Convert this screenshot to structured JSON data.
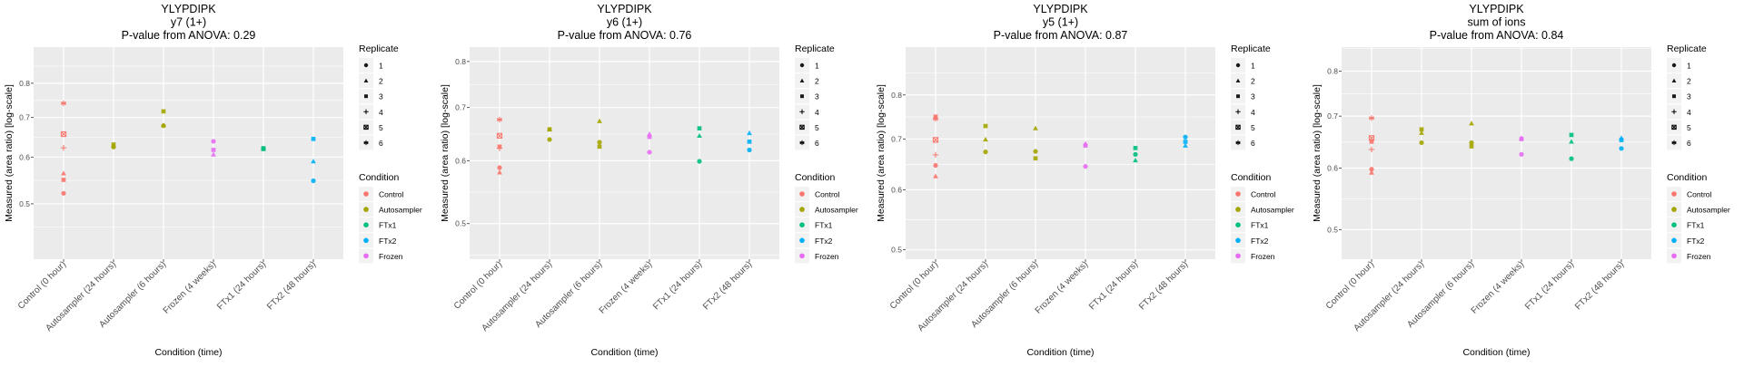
{
  "legend": {
    "replicate_title": "Replicate",
    "replicates": [
      "1",
      "2",
      "3",
      "4",
      "5",
      "6"
    ],
    "condition_title": "Condition",
    "conditions": [
      {
        "name": "Control",
        "color": "#F8766D"
      },
      {
        "name": "Autosampler",
        "color": "#A3A500"
      },
      {
        "name": "FTx1",
        "color": "#00BF7D"
      },
      {
        "name": "FTx2",
        "color": "#00B0F6"
      },
      {
        "name": "Frozen",
        "color": "#E76BF3"
      }
    ]
  },
  "chart_data": [
    {
      "type": "scatter",
      "title": [
        "YLYPDIPK",
        "y7 (1+)",
        "P-value from ANOVA: 0.29"
      ],
      "xlabel": "Condition (time)",
      "ylabel": "Measured (area ratio) [log-scale]",
      "yscale": "log",
      "ylim": [
        0.403,
        0.921
      ],
      "yticks": [
        0.5,
        0.6,
        0.7,
        0.8
      ],
      "grid": true,
      "legend": "right",
      "categories": [
        "Control (0 hour)",
        "Autosampler (24 hours)",
        "Autosampler (6 hours)",
        "Frozen (4 weeks)",
        "FTx1 (24 hours)",
        "FTx2 (48 hours)"
      ],
      "category_condition": [
        "Control",
        "Autosampler",
        "Autosampler",
        "Frozen",
        "FTx1",
        "FTx2"
      ],
      "points": [
        [
          0,
          6,
          0.74
        ],
        [
          0,
          5,
          0.656
        ],
        [
          0,
          4,
          0.622
        ],
        [
          0,
          2,
          0.563
        ],
        [
          0,
          3,
          0.549
        ],
        [
          0,
          1,
          0.521
        ],
        [
          1,
          3,
          0.63
        ],
        [
          1,
          1,
          0.624
        ],
        [
          1,
          2,
          0.626
        ],
        [
          2,
          3,
          0.717
        ],
        [
          2,
          1,
          0.678
        ],
        [
          2,
          2,
          0.679
        ],
        [
          3,
          1,
          0.638
        ],
        [
          3,
          3,
          0.617
        ],
        [
          3,
          2,
          0.606
        ],
        [
          4,
          1,
          0.62
        ],
        [
          4,
          3,
          0.621
        ],
        [
          4,
          2,
          0.619
        ],
        [
          5,
          3,
          0.644
        ],
        [
          5,
          2,
          0.59
        ],
        [
          5,
          1,
          0.547
        ]
      ]
    },
    {
      "type": "scatter",
      "title": [
        "YLYPDIPK",
        "y6 (1+)",
        "P-value from ANOVA: 0.76"
      ],
      "xlabel": "Condition (time)",
      "ylabel": "Measured (area ratio) [log-scale]",
      "yscale": "log",
      "ylim": [
        0.451,
        0.834
      ],
      "yticks": [
        0.5,
        0.6,
        0.7,
        0.8
      ],
      "grid": true,
      "legend": "right",
      "categories": [
        "Control (0 hour)",
        "Autosampler (24 hours)",
        "Autosampler (6 hours)",
        "Frozen (4 weeks)",
        "FTx1 (24 hours)",
        "FTx2 (48 hours)"
      ],
      "category_condition": [
        "Control",
        "Autosampler",
        "Autosampler",
        "Frozen",
        "FTx1",
        "FTx2"
      ],
      "points": [
        [
          0,
          6,
          0.676
        ],
        [
          0,
          5,
          0.645
        ],
        [
          0,
          3,
          0.625
        ],
        [
          0,
          4,
          0.622
        ],
        [
          0,
          1,
          0.588
        ],
        [
          0,
          2,
          0.58
        ],
        [
          1,
          3,
          0.657
        ],
        [
          1,
          1,
          0.638
        ],
        [
          1,
          2,
          0.657
        ],
        [
          2,
          2,
          0.673
        ],
        [
          2,
          1,
          0.633
        ],
        [
          2,
          3,
          0.625
        ],
        [
          3,
          2,
          0.648
        ],
        [
          3,
          3,
          0.643
        ],
        [
          3,
          1,
          0.615
        ],
        [
          4,
          3,
          0.659
        ],
        [
          4,
          2,
          0.645
        ],
        [
          4,
          1,
          0.599
        ],
        [
          5,
          2,
          0.65
        ],
        [
          5,
          3,
          0.634
        ],
        [
          5,
          1,
          0.619
        ]
      ]
    },
    {
      "type": "scatter",
      "title": [
        "YLYPDIPK",
        "y5 (1+)",
        "P-value from ANOVA: 0.87"
      ],
      "xlabel": "Condition (time)",
      "ylabel": "Measured (area ratio) [log-scale]",
      "yscale": "log",
      "ylim": [
        0.486,
        0.925
      ],
      "yticks": [
        0.5,
        0.6,
        0.7,
        0.8
      ],
      "grid": true,
      "legend": "right",
      "categories": [
        "Control (0 hour)",
        "Autosampler (24 hours)",
        "Autosampler (6 hours)",
        "Frozen (4 weeks)",
        "FTx1 (24 hours)",
        "FTx2 (48 hours)"
      ],
      "category_condition": [
        "Control",
        "Autosampler",
        "Autosampler",
        "Frozen",
        "FTx1",
        "FTx2"
      ],
      "points": [
        [
          0,
          3,
          0.749
        ],
        [
          0,
          6,
          0.744
        ],
        [
          0,
          5,
          0.698
        ],
        [
          0,
          4,
          0.667
        ],
        [
          0,
          1,
          0.646
        ],
        [
          0,
          2,
          0.625
        ],
        [
          1,
          3,
          0.728
        ],
        [
          1,
          2,
          0.699
        ],
        [
          1,
          1,
          0.673
        ],
        [
          2,
          2,
          0.723
        ],
        [
          2,
          1,
          0.674
        ],
        [
          2,
          3,
          0.66
        ],
        [
          3,
          2,
          0.69
        ],
        [
          3,
          3,
          0.686
        ],
        [
          3,
          1,
          0.644
        ],
        [
          4,
          3,
          0.681
        ],
        [
          4,
          1,
          0.668
        ],
        [
          4,
          2,
          0.656
        ],
        [
          5,
          1,
          0.704
        ],
        [
          5,
          3,
          0.694
        ],
        [
          5,
          2,
          0.686
        ]
      ]
    },
    {
      "type": "scatter",
      "title": [
        "YLYPDIPK",
        "sum of ions",
        "P-value from ANOVA: 0.84"
      ],
      "xlabel": "Condition (time)",
      "ylabel": "Measured (area ratio) [log-scale]",
      "yscale": "log",
      "ylim": [
        0.458,
        0.859
      ],
      "yticks": [
        0.5,
        0.6,
        0.7,
        0.8
      ],
      "grid": true,
      "legend": "right",
      "categories": [
        "Control (0 hour)",
        "Autosampler (24 hours)",
        "Autosampler (6 hours)",
        "Frozen (4 weeks)",
        "FTx1 (24 hours)",
        "FTx2 (48 hours)"
      ],
      "category_condition": [
        "Control",
        "Autosampler",
        "Autosampler",
        "Frozen",
        "FTx1",
        "FTx2"
      ],
      "points": [
        [
          0,
          6,
          0.696
        ],
        [
          0,
          5,
          0.656
        ],
        [
          0,
          3,
          0.649
        ],
        [
          0,
          4,
          0.634
        ],
        [
          0,
          1,
          0.598
        ],
        [
          0,
          2,
          0.592
        ],
        [
          1,
          3,
          0.673
        ],
        [
          1,
          2,
          0.666
        ],
        [
          1,
          1,
          0.647
        ],
        [
          2,
          2,
          0.685
        ],
        [
          2,
          1,
          0.647
        ],
        [
          2,
          3,
          0.64
        ],
        [
          3,
          2,
          0.656
        ],
        [
          3,
          3,
          0.654
        ],
        [
          3,
          1,
          0.625
        ],
        [
          4,
          3,
          0.662
        ],
        [
          4,
          2,
          0.649
        ],
        [
          4,
          1,
          0.617
        ],
        [
          5,
          2,
          0.656
        ],
        [
          5,
          3,
          0.652
        ],
        [
          5,
          1,
          0.636
        ]
      ]
    }
  ]
}
